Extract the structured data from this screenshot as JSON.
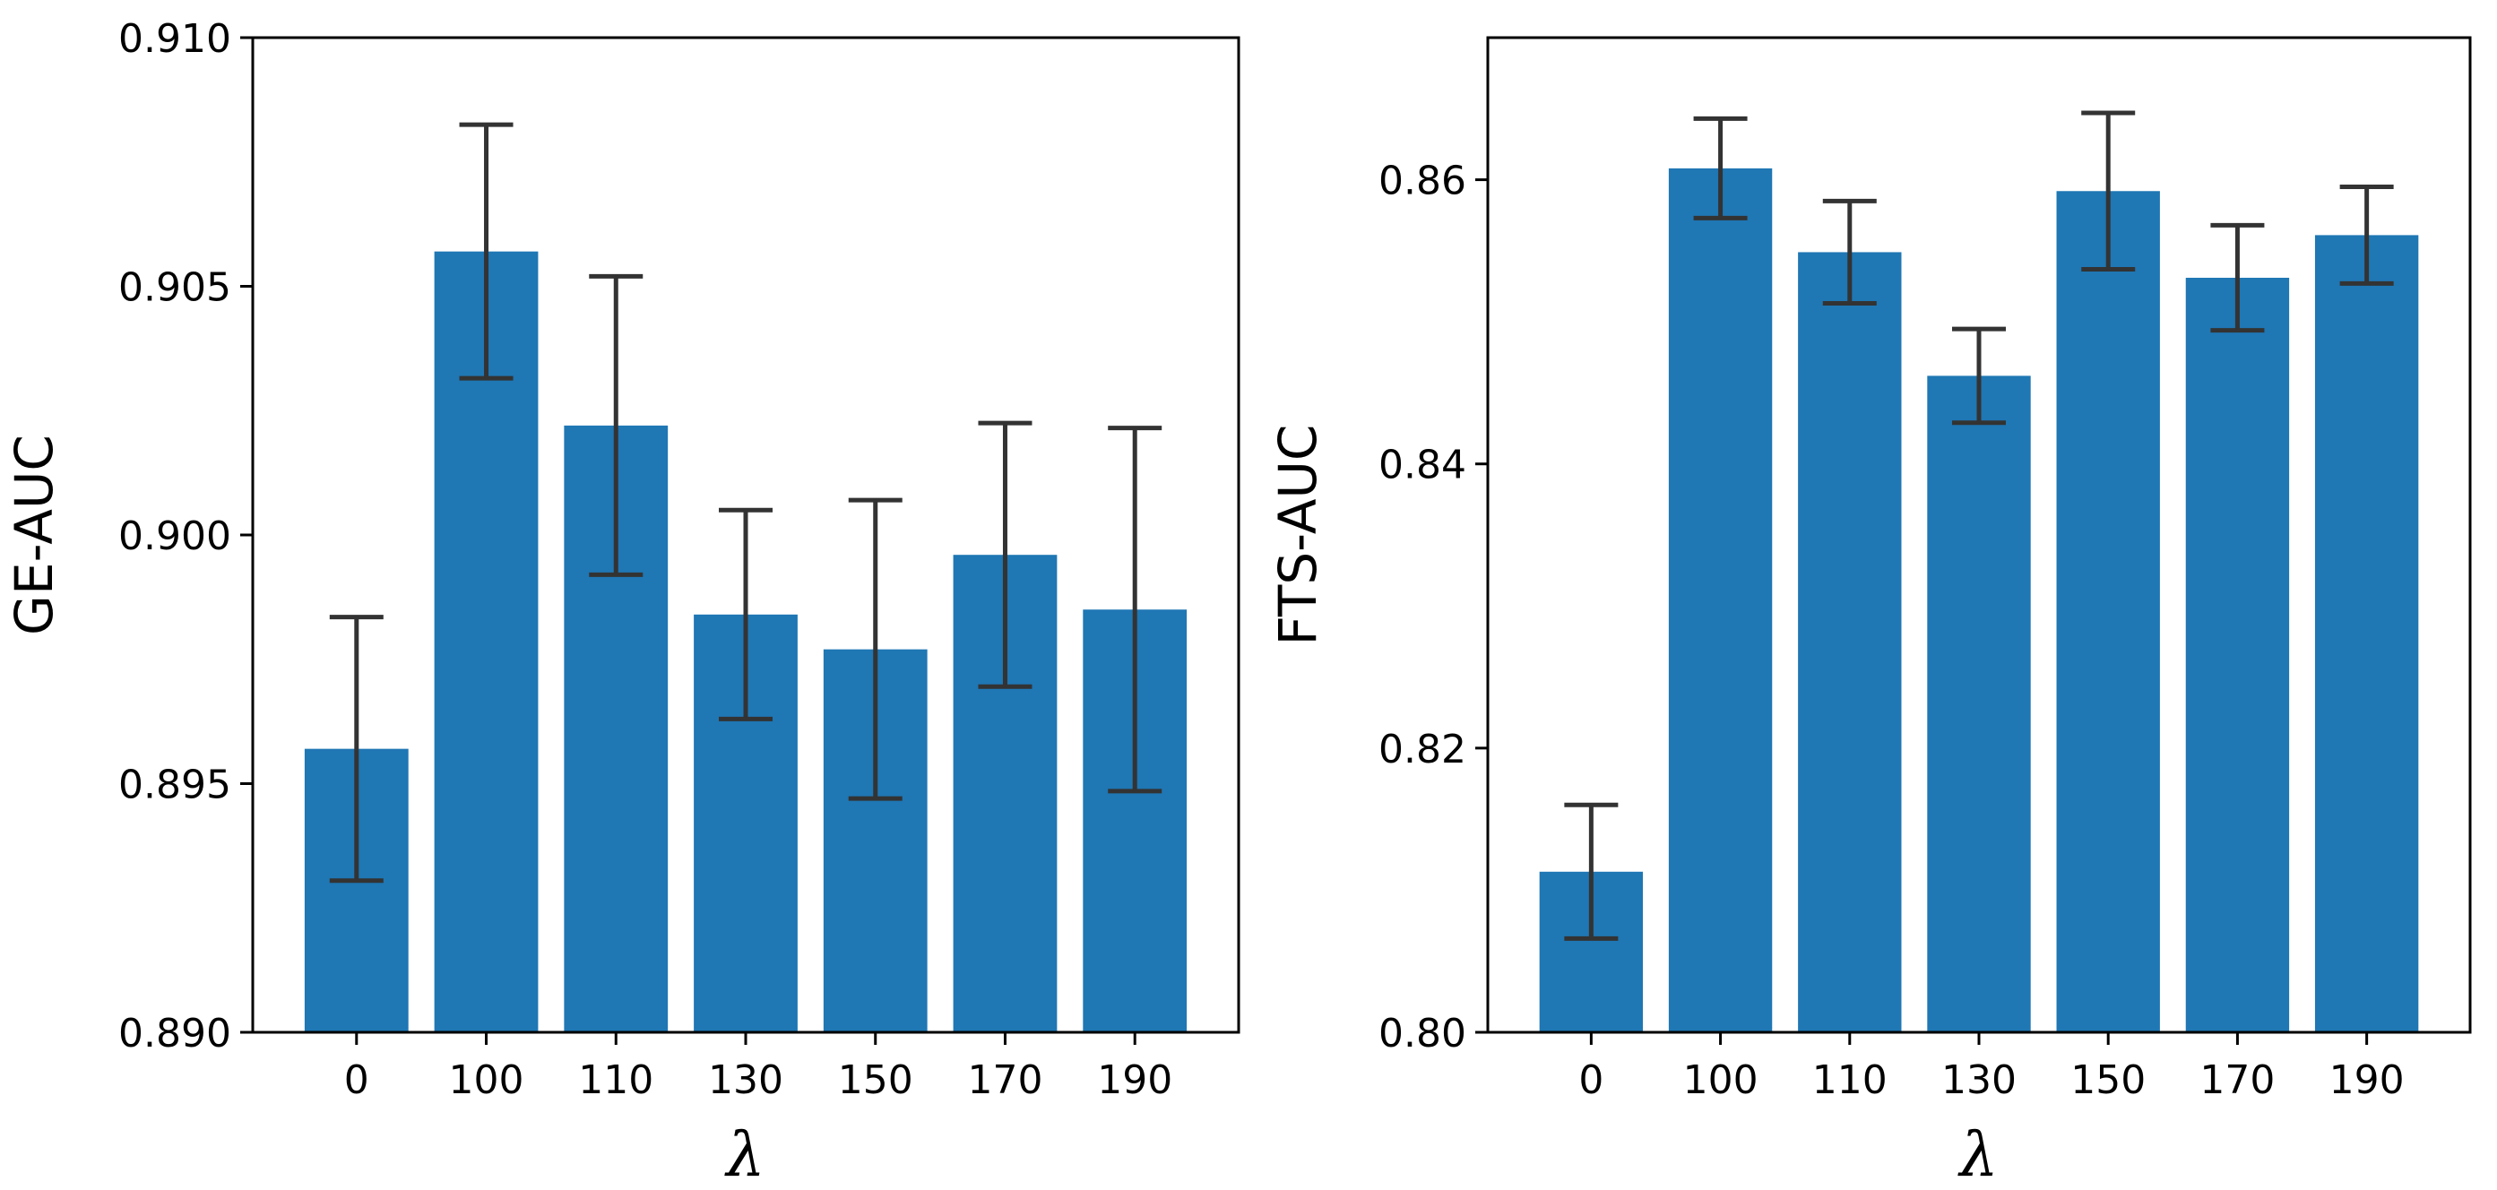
{
  "chart_data": [
    {
      "type": "bar",
      "categories": [
        "0",
        "100",
        "110",
        "130",
        "150",
        "170",
        "190"
      ],
      "series": [
        {
          "name": "GE-AUC",
          "values": [
            0.8957,
            0.9057,
            0.9022,
            0.8984,
            0.8977,
            0.8996,
            0.8985
          ],
          "errors": [
            0.00265,
            0.00255,
            0.003,
            0.0021,
            0.003,
            0.00265,
            0.00365
          ],
          "color": "#1f77b4"
        }
      ],
      "error_color": "#333333",
      "xlabel": "λ",
      "ylabel": "GE-AUC",
      "ylim": [
        0.89,
        0.91
      ],
      "yticks": [
        0.89,
        0.895,
        0.9,
        0.905,
        0.91
      ],
      "ytick_labels": [
        "0.890",
        "0.895",
        "0.900",
        "0.905",
        "0.910"
      ]
    },
    {
      "type": "bar",
      "categories": [
        "0",
        "100",
        "110",
        "130",
        "150",
        "170",
        "190"
      ],
      "series": [
        {
          "name": "FTS-AUC",
          "values": [
            0.8113,
            0.8608,
            0.8549,
            0.8462,
            0.8592,
            0.8531,
            0.8561
          ],
          "errors": [
            0.0047,
            0.0035,
            0.0036,
            0.0033,
            0.0055,
            0.0037,
            0.0034
          ],
          "color": "#1f77b4"
        }
      ],
      "error_color": "#333333",
      "xlabel": "λ",
      "ylabel": "FTS-AUC",
      "ylim": [
        0.8,
        0.87
      ],
      "yticks": [
        0.8,
        0.82,
        0.84,
        0.86
      ],
      "ytick_labels": [
        "0.80",
        "0.82",
        "0.84",
        "0.86"
      ]
    }
  ]
}
